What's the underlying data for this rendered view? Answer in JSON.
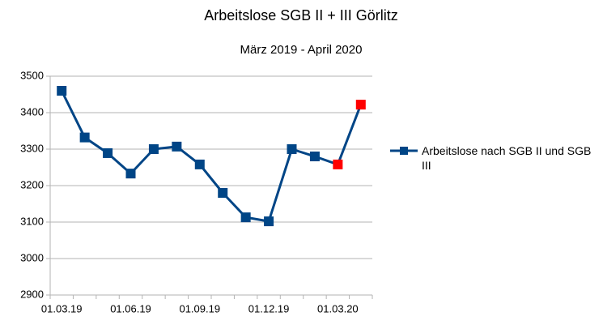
{
  "chart_data": {
    "type": "line",
    "title": "Arbeitslose SGB II + III Görlitz",
    "subtitle": "März 2019 - April 2020",
    "categories": [
      "01.03.19",
      null,
      null,
      "01.06.19",
      null,
      null,
      "01.09.19",
      null,
      null,
      "01.12.19",
      null,
      null,
      "01.03.20",
      null
    ],
    "series": [
      {
        "name": "Arbeitslose nach SGB II und SGB III",
        "color": "#004586",
        "values": [
          3460,
          3332,
          3289,
          3233,
          3300,
          3307,
          3258,
          3180,
          3113,
          3102,
          3300,
          3280,
          3258,
          3422
        ],
        "marker_colors": [
          "#004586",
          "#004586",
          "#004586",
          "#004586",
          "#004586",
          "#004586",
          "#004586",
          "#004586",
          "#004586",
          "#004586",
          "#004586",
          "#004586",
          "#ff0000",
          "#ff0000"
        ]
      }
    ],
    "ylim": [
      2900,
      3500
    ],
    "yticks": [
      2900,
      3000,
      3100,
      3200,
      3300,
      3400,
      3500
    ],
    "grid": true,
    "legend": "right"
  }
}
